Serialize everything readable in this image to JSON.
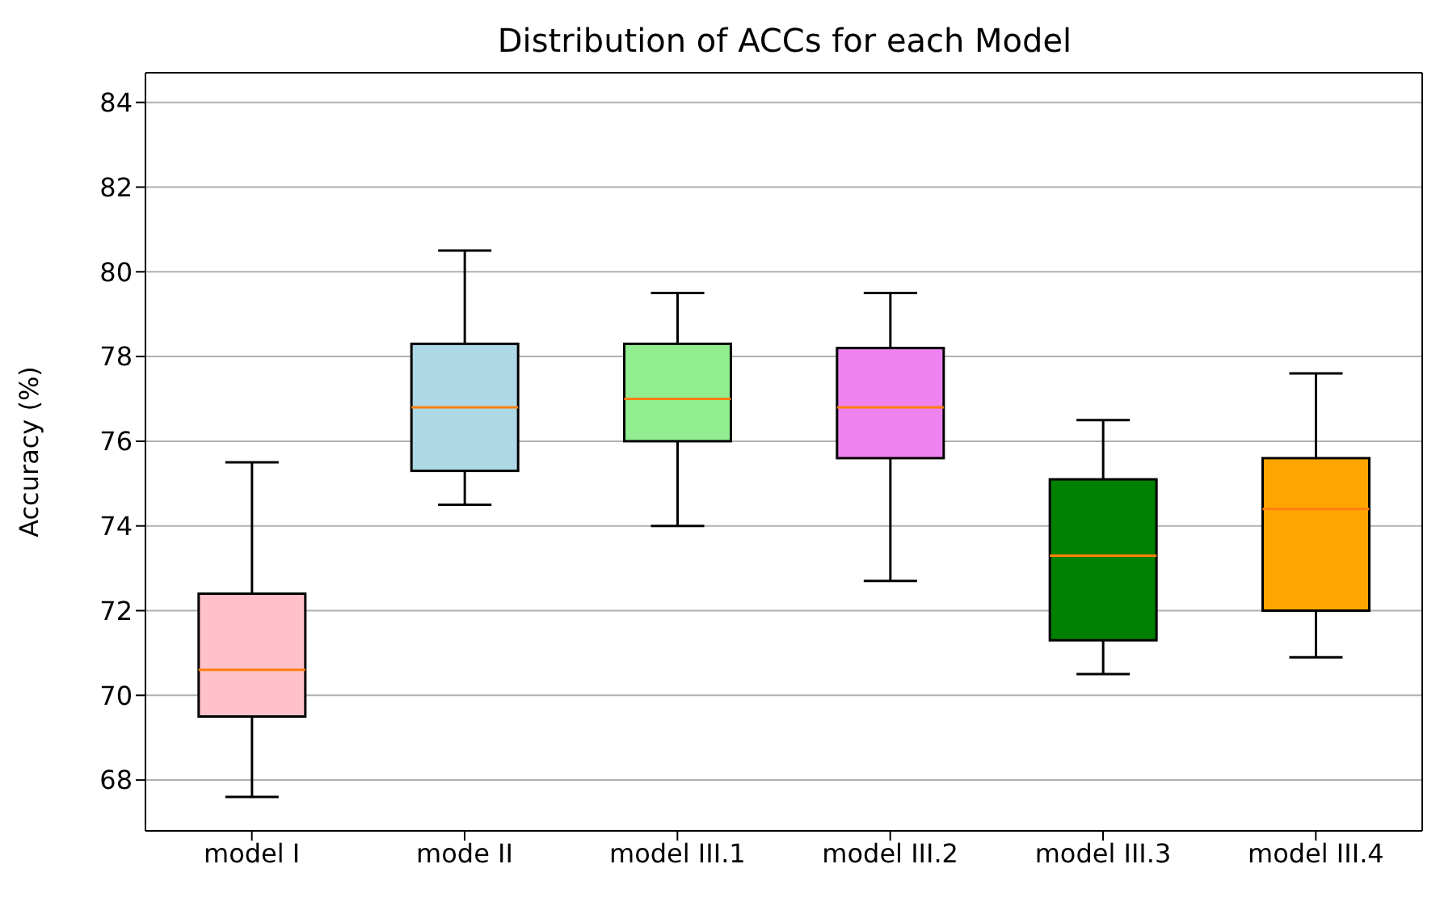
{
  "chart_data": {
    "type": "box",
    "title": "Distribution of ACCs for each Model",
    "ylabel": "Accuracy (%)",
    "categories": [
      "model I",
      "mode II",
      "model III.1",
      "model III.2",
      "model III.3",
      "model III.4"
    ],
    "boxes": [
      {
        "low": 67.6,
        "q1": 69.5,
        "median": 70.6,
        "q3": 72.4,
        "high": 75.5
      },
      {
        "low": 74.5,
        "q1": 75.3,
        "median": 76.8,
        "q3": 78.3,
        "high": 80.5
      },
      {
        "low": 74.0,
        "q1": 76.0,
        "median": 77.0,
        "q3": 78.3,
        "high": 79.5
      },
      {
        "low": 72.7,
        "q1": 75.6,
        "median": 76.8,
        "q3": 78.2,
        "high": 79.5
      },
      {
        "low": 70.5,
        "q1": 71.3,
        "median": 73.3,
        "q3": 75.1,
        "high": 76.5
      },
      {
        "low": 70.9,
        "q1": 72.0,
        "median": 74.4,
        "q3": 75.6,
        "high": 77.6
      }
    ],
    "colors": [
      "#ffc0cb",
      "#add8e6",
      "#90ee90",
      "#ee82ee",
      "#008000",
      "#ffa500"
    ],
    "ylim": [
      66.8,
      84.7
    ],
    "yticks": [
      68,
      70,
      72,
      74,
      76,
      78,
      80,
      82,
      84
    ],
    "grid": "y"
  }
}
